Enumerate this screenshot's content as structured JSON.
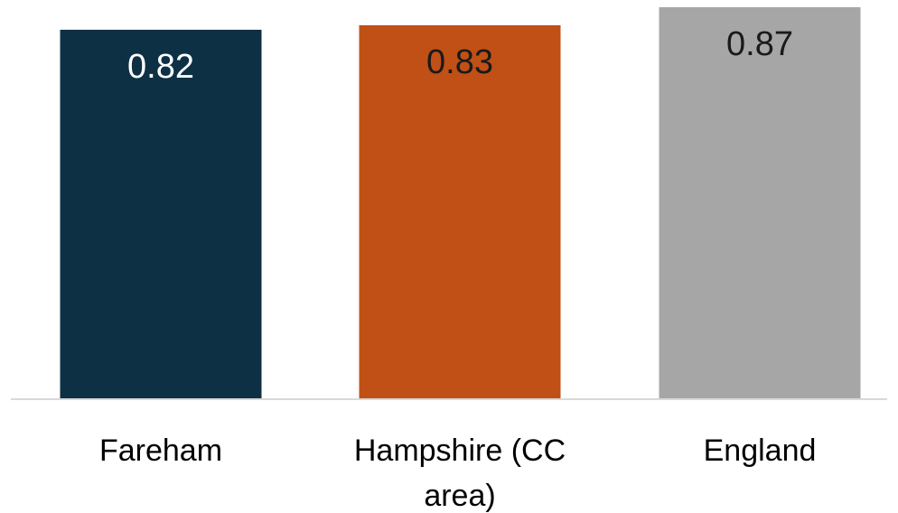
{
  "chart_data": {
    "type": "bar",
    "title": "",
    "xlabel": "",
    "ylabel": "",
    "categories": [
      [
        "Fareham"
      ],
      [
        "Hampshire (CC",
        "area)"
      ],
      [
        "England"
      ]
    ],
    "values": [
      0.82,
      0.83,
      0.87
    ],
    "data_labels": [
      "0.82",
      "0.83",
      "0.87"
    ],
    "ylim": [
      0,
      0.87
    ],
    "grid": false,
    "legend": "none",
    "colors": {
      "bars": [
        "#0e3044",
        "#c05016",
        "#a6a6a6"
      ],
      "label_text": [
        "#ffffff",
        "#1a1a1a",
        "#1a1a1a"
      ],
      "baseline": "#d9d9d9"
    }
  }
}
